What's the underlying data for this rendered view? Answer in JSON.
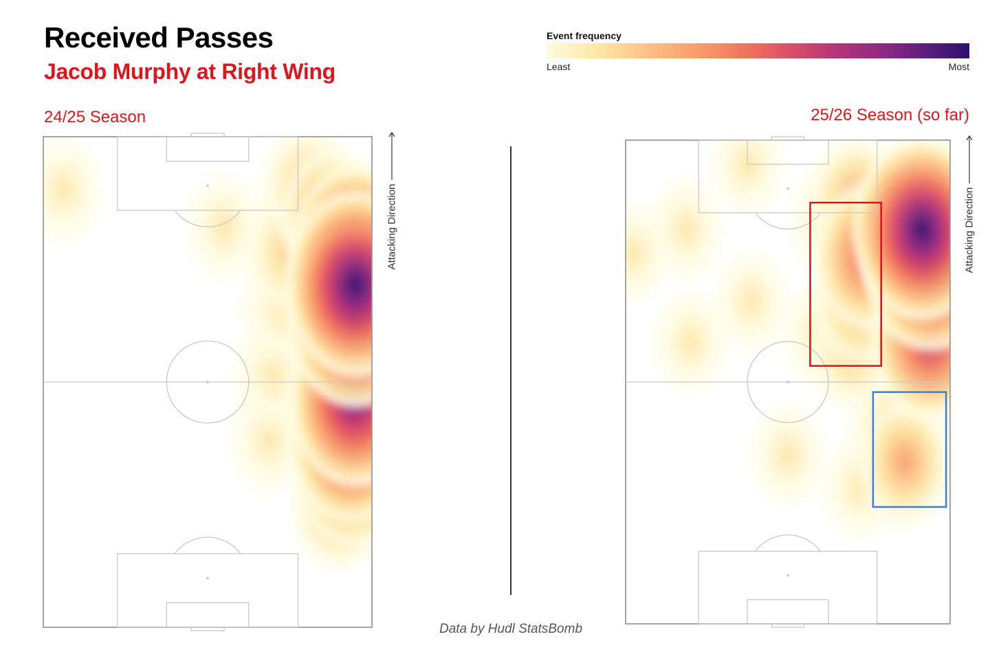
{
  "header": {
    "title": "Received Passes",
    "subtitle": "Jacob Murphy at Right Wing"
  },
  "legend": {
    "title": "Event frequency",
    "min_label": "Least",
    "max_label": "Most",
    "colors": [
      "#fffbe0",
      "#fde7a6",
      "#fdc086",
      "#f89b6a",
      "#f0705e",
      "#db4d68",
      "#b83577",
      "#8a2981",
      "#5a1f7e",
      "#2f0f6c"
    ]
  },
  "direction_label": "Attacking Direction",
  "credit": "Data by Hudl StatsBomb",
  "colors": {
    "accent": "#e0141b",
    "zone_red": "#d0141b",
    "zone_blue": "#3a7de0",
    "pitch_lines": "#c8c8c8"
  },
  "chart_data": [
    {
      "type": "heatmap",
      "title": "24/25 Season",
      "xlim": [
        0,
        80
      ],
      "ylim": [
        0,
        120
      ],
      "orientation": "vertical",
      "hotspots": [
        {
          "x": 76,
          "y": 84,
          "intensity": 1.0
        },
        {
          "x": 76,
          "y": 76,
          "intensity": 0.95
        },
        {
          "x": 76,
          "y": 92,
          "intensity": 0.85
        },
        {
          "x": 76,
          "y": 56,
          "intensity": 0.9
        },
        {
          "x": 76,
          "y": 64,
          "intensity": 0.75
        },
        {
          "x": 75,
          "y": 46,
          "intensity": 0.8
        },
        {
          "x": 75,
          "y": 38,
          "intensity": 0.6
        },
        {
          "x": 72,
          "y": 30,
          "intensity": 0.35
        },
        {
          "x": 70,
          "y": 100,
          "intensity": 0.45
        },
        {
          "x": 60,
          "y": 92,
          "intensity": 0.3
        },
        {
          "x": 58,
          "y": 78,
          "intensity": 0.2
        },
        {
          "x": 56,
          "y": 62,
          "intensity": 0.15
        },
        {
          "x": 55,
          "y": 46,
          "intensity": 0.12
        },
        {
          "x": 64,
          "y": 108,
          "intensity": 0.3
        },
        {
          "x": 44,
          "y": 98,
          "intensity": 0.1
        },
        {
          "x": 5,
          "y": 107,
          "intensity": 0.1
        }
      ]
    },
    {
      "type": "heatmap",
      "title": "25/26 Season (so far)",
      "xlim": [
        0,
        80
      ],
      "ylim": [
        0,
        120
      ],
      "orientation": "vertical",
      "hotspots": [
        {
          "x": 73,
          "y": 98,
          "intensity": 1.0
        },
        {
          "x": 75,
          "y": 90,
          "intensity": 0.95
        },
        {
          "x": 75,
          "y": 80,
          "intensity": 0.6
        },
        {
          "x": 75,
          "y": 70,
          "intensity": 0.7
        },
        {
          "x": 60,
          "y": 91,
          "intensity": 0.6
        },
        {
          "x": 58,
          "y": 80,
          "intensity": 0.4
        },
        {
          "x": 56,
          "y": 68,
          "intensity": 0.3
        },
        {
          "x": 57,
          "y": 105,
          "intensity": 0.35
        },
        {
          "x": 66,
          "y": 88,
          "intensity": 0.45
        },
        {
          "x": 50,
          "y": 100,
          "intensity": 0.15
        },
        {
          "x": 48,
          "y": 72,
          "intensity": 0.12
        },
        {
          "x": 69,
          "y": 40,
          "intensity": 0.35
        },
        {
          "x": 66,
          "y": 48,
          "intensity": 0.25
        },
        {
          "x": 58,
          "y": 34,
          "intensity": 0.12
        },
        {
          "x": 40,
          "y": 42,
          "intensity": 0.1
        },
        {
          "x": 16,
          "y": 70,
          "intensity": 0.1
        },
        {
          "x": 31,
          "y": 80,
          "intensity": 0.08
        },
        {
          "x": 15,
          "y": 98,
          "intensity": 0.08
        },
        {
          "x": 2,
          "y": 92,
          "intensity": 0.06
        },
        {
          "x": 30,
          "y": 114,
          "intensity": 0.06
        }
      ],
      "zones": [
        {
          "color": "red",
          "x": [
            45.5,
            63
          ],
          "y": [
            64,
            104.5
          ]
        },
        {
          "color": "blue",
          "x": [
            61,
            79
          ],
          "y": [
            29,
            57.5
          ]
        }
      ]
    }
  ]
}
